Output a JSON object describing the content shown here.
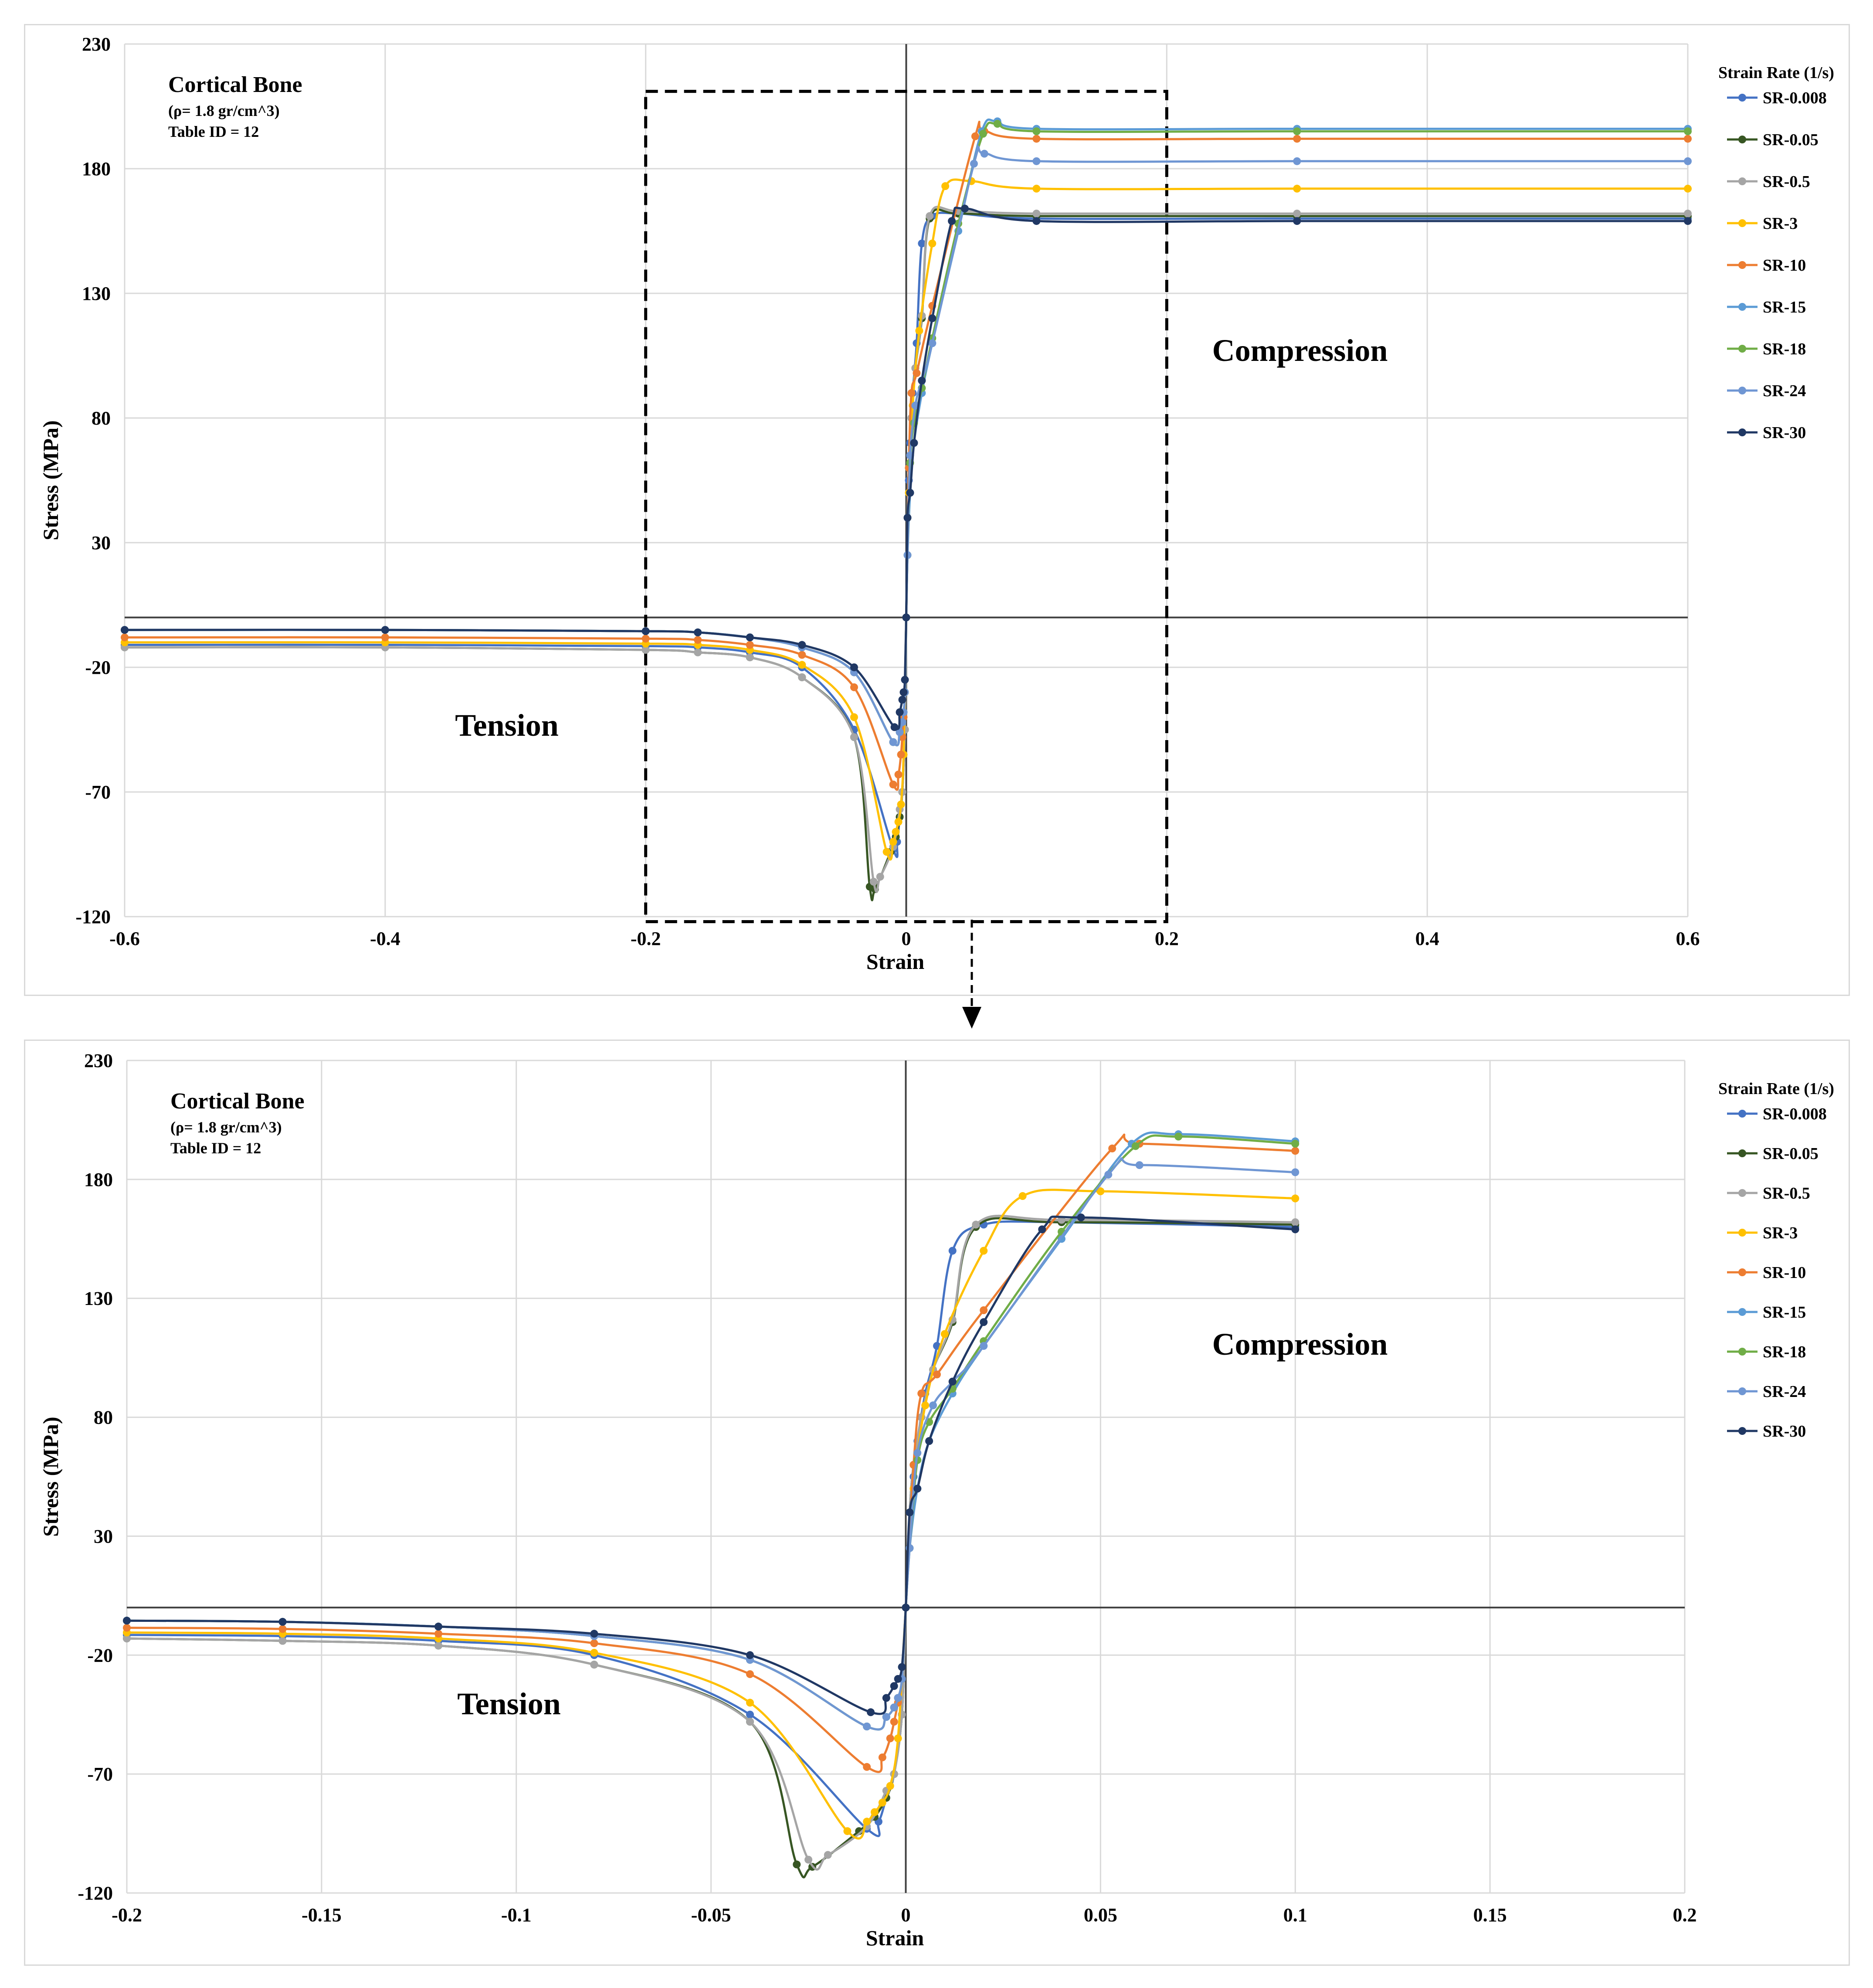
{
  "chart_data": [
    {
      "type": "line",
      "panel": "overview",
      "info": {
        "title": "Cortical Bone",
        "density": "(ρ= 1.8 gr/cm^3)",
        "table_id": "Table ID = 12"
      },
      "xlabel": "Strain",
      "ylabel": "Stress (MPa)",
      "xlim": [
        -0.6,
        0.6
      ],
      "ylim": [
        -120,
        230
      ],
      "xticks": [
        -0.6,
        -0.4,
        -0.2,
        0,
        0.2,
        0.4,
        0.6
      ],
      "xtick_labels": [
        "-0.6",
        "-0.4",
        "-0.2",
        "0",
        "0.2",
        "0.4",
        "0.6"
      ],
      "yticks": [
        -120,
        -70,
        -20,
        30,
        80,
        130,
        180,
        230
      ],
      "ytick_labels": [
        "-120",
        "-70",
        "-20",
        "30",
        "80",
        "130",
        "180",
        "230"
      ],
      "annotations": {
        "tension": "Tension",
        "compression": "Compression"
      },
      "zoom_box": {
        "x": [
          -0.2,
          0.2
        ],
        "y": [
          -122,
          211
        ]
      },
      "legend_title": "Strain Rate (1/s)",
      "legend_position": "right"
    },
    {
      "type": "line",
      "panel": "zoomed",
      "info": {
        "title": "Cortical Bone",
        "density": "(ρ= 1.8 gr/cm^3)",
        "table_id": "Table ID = 12"
      },
      "xlabel": "Strain",
      "ylabel": "Stress (MPa)",
      "xlim": [
        -0.2,
        0.2
      ],
      "ylim": [
        -120,
        230
      ],
      "xticks": [
        -0.2,
        -0.15,
        -0.1,
        -0.05,
        0,
        0.05,
        0.1,
        0.15,
        0.2
      ],
      "xtick_labels": [
        "-0.2",
        "-0.15",
        "-0.1",
        "-0.05",
        "0",
        "0.05",
        "0.1",
        "0.15",
        "0.2"
      ],
      "yticks": [
        -120,
        -70,
        -20,
        30,
        80,
        130,
        180,
        230
      ],
      "ytick_labels": [
        "-120",
        "-70",
        "-20",
        "30",
        "80",
        "130",
        "180",
        "230"
      ],
      "annotations": {
        "tension": "Tension",
        "compression": "Compression"
      },
      "legend_title": "Strain Rate (1/s)",
      "legend_position": "right"
    }
  ],
  "series": [
    {
      "name": "SR-0.008",
      "color": "#4472C4",
      "x": [
        -0.6,
        -0.4,
        -0.2,
        -0.16,
        -0.12,
        -0.08,
        -0.04,
        -0.01,
        -0.007,
        -0.005,
        -0.003,
        -0.001,
        0,
        0.001,
        0.002,
        0.003,
        0.005,
        0.008,
        0.012,
        0.02,
        0.04,
        0.1,
        0.3,
        0.6
      ],
      "y": [
        -11,
        -11,
        -11.5,
        -12,
        -14,
        -20,
        -45,
        -93,
        -90,
        -80,
        -70,
        -45,
        0,
        40,
        55,
        70,
        90,
        110,
        150,
        161,
        162,
        160,
        160,
        160
      ]
    },
    {
      "name": "SR-0.05",
      "color": "#375623",
      "x": [
        -0.6,
        -0.4,
        -0.2,
        -0.16,
        -0.12,
        -0.08,
        -0.04,
        -0.028,
        -0.024,
        -0.012,
        -0.008,
        -0.005,
        -0.003,
        -0.001,
        0,
        0.001,
        0.002,
        0.004,
        0.007,
        0.012,
        0.018,
        0.04,
        0.1,
        0.3,
        0.6
      ],
      "y": [
        -12,
        -12,
        -13,
        -14,
        -16,
        -24,
        -48,
        -108,
        -109,
        -94,
        -88,
        -80,
        -70,
        -45,
        0,
        40,
        60,
        80,
        100,
        120,
        160,
        162,
        161,
        161,
        161
      ]
    },
    {
      "name": "SR-0.5",
      "color": "#A5A5A5",
      "x": [
        -0.6,
        -0.4,
        -0.2,
        -0.16,
        -0.12,
        -0.08,
        -0.04,
        -0.025,
        -0.02,
        -0.01,
        -0.005,
        -0.003,
        -0.001,
        0,
        0.001,
        0.002,
        0.004,
        0.007,
        0.012,
        0.018,
        0.04,
        0.1,
        0.3,
        0.6
      ],
      "y": [
        -12,
        -12,
        -13,
        -14,
        -16,
        -24,
        -48,
        -106,
        -104,
        -92,
        -77,
        -70,
        -45,
        0,
        40,
        60,
        80,
        100,
        121,
        161,
        163,
        162,
        162,
        162
      ]
    },
    {
      "name": "SR-3",
      "color": "#FFC000",
      "x": [
        -0.6,
        -0.4,
        -0.2,
        -0.16,
        -0.12,
        -0.08,
        -0.04,
        -0.015,
        -0.01,
        -0.008,
        -0.006,
        -0.004,
        -0.002,
        0,
        0.002,
        0.005,
        0.01,
        0.02,
        0.03,
        0.05,
        0.1,
        0.3,
        0.6
      ],
      "y": [
        -10,
        -10,
        -10.5,
        -11,
        -13,
        -19,
        -40,
        -94,
        -90,
        -86,
        -82,
        -75,
        -55,
        0,
        50,
        85,
        115,
        150,
        173,
        175,
        172,
        172,
        172
      ]
    },
    {
      "name": "SR-10",
      "color": "#ED7D31",
      "x": [
        -0.6,
        -0.4,
        -0.2,
        -0.16,
        -0.12,
        -0.08,
        -0.04,
        -0.01,
        -0.006,
        -0.004,
        -0.003,
        -0.002,
        -0.001,
        0,
        0.002,
        0.004,
        0.008,
        0.02,
        0.053,
        0.06,
        0.1,
        0.3,
        0.6
      ],
      "y": [
        -8,
        -8,
        -8.5,
        -9,
        -11,
        -15,
        -28,
        -67,
        -63,
        -55,
        -48,
        -40,
        -30,
        0,
        60,
        90,
        98,
        125,
        193,
        195,
        192,
        192,
        192
      ]
    },
    {
      "name": "SR-15",
      "color": "#5B9BD5",
      "x": [
        -0.6,
        -0.4,
        -0.2,
        -0.16,
        -0.12,
        -0.08,
        -0.04,
        -0.01,
        -0.005,
        -0.003,
        -0.002,
        -0.001,
        0,
        0.001,
        0.003,
        0.006,
        0.012,
        0.02,
        0.04,
        0.058,
        0.07,
        0.1,
        0.3,
        0.6
      ],
      "y": [
        -5,
        -5,
        -5.5,
        -6,
        -8,
        -12,
        -22,
        -50,
        -46,
        -42,
        -38,
        -30,
        0,
        25,
        50,
        70,
        90,
        110,
        155,
        195,
        199,
        196,
        196,
        196
      ]
    },
    {
      "name": "SR-18",
      "color": "#70AD47",
      "x": [
        -0.6,
        -0.4,
        -0.2,
        -0.16,
        -0.12,
        -0.08,
        -0.04,
        -0.01,
        -0.005,
        -0.003,
        -0.002,
        -0.001,
        0,
        0.001,
        0.003,
        0.006,
        0.012,
        0.02,
        0.04,
        0.059,
        0.07,
        0.1,
        0.3,
        0.6
      ],
      "y": [
        -5,
        -5,
        -5.5,
        -6,
        -8,
        -12,
        -22,
        -50,
        -46,
        -42,
        -38,
        -30,
        0,
        25,
        62,
        78,
        92,
        112,
        158,
        194,
        198,
        195,
        195,
        195
      ]
    },
    {
      "name": "SR-24",
      "color": "#6F96D3",
      "x": [
        -0.6,
        -0.4,
        -0.2,
        -0.16,
        -0.12,
        -0.08,
        -0.04,
        -0.01,
        -0.005,
        -0.003,
        -0.002,
        -0.001,
        0,
        0.001,
        0.003,
        0.007,
        0.012,
        0.02,
        0.052,
        0.06,
        0.1,
        0.3,
        0.6
      ],
      "y": [
        -5,
        -5,
        -5.5,
        -6,
        -8,
        -12,
        -22,
        -50,
        -46,
        -42,
        -38,
        -30,
        0,
        25,
        65,
        85,
        95,
        110,
        182,
        186,
        183,
        183,
        183
      ]
    },
    {
      "name": "SR-30",
      "color": "#203864",
      "x": [
        -0.6,
        -0.4,
        -0.2,
        -0.16,
        -0.12,
        -0.08,
        -0.04,
        -0.009,
        -0.005,
        -0.003,
        -0.002,
        -0.001,
        0,
        0.001,
        0.003,
        0.006,
        0.012,
        0.02,
        0.035,
        0.045,
        0.1,
        0.3,
        0.6
      ],
      "y": [
        -5,
        -5,
        -5.5,
        -6,
        -8,
        -11,
        -20,
        -44,
        -38,
        -33,
        -30,
        -25,
        0,
        40,
        50,
        70,
        95,
        120,
        159,
        164,
        159,
        159,
        159
      ]
    }
  ]
}
